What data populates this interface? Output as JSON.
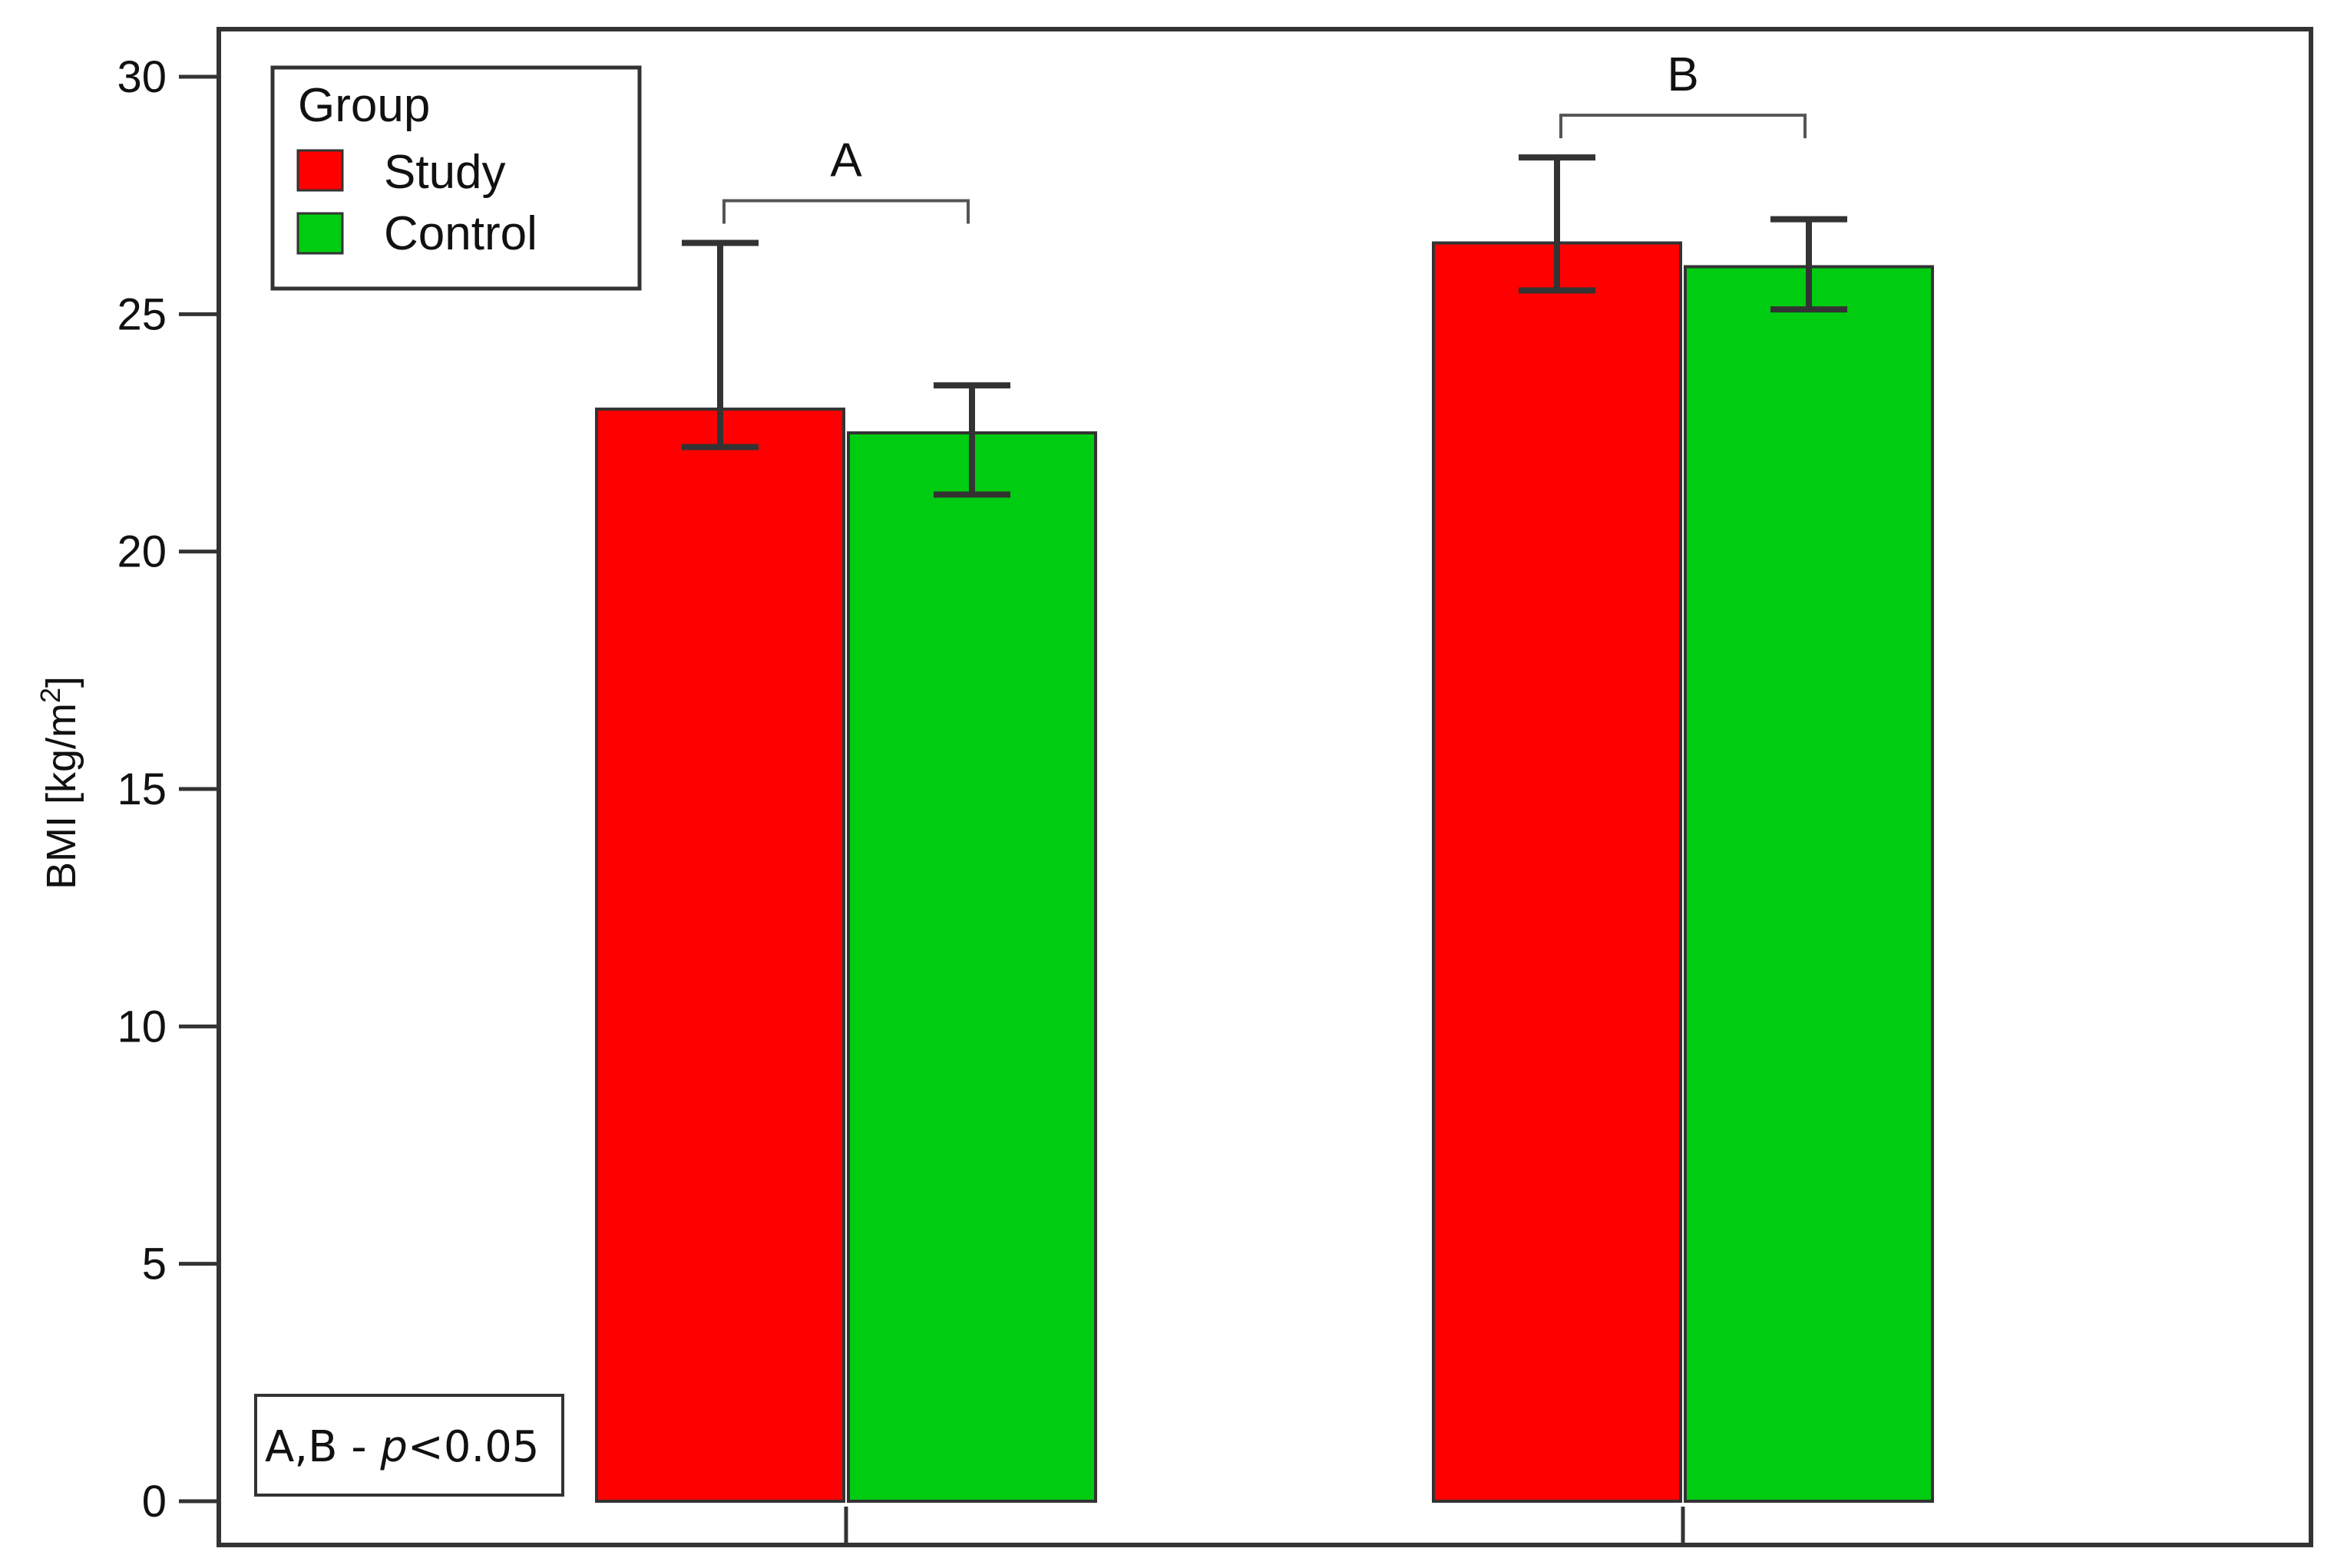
{
  "chart_data": {
    "type": "bar",
    "title": "",
    "xlabel": "",
    "ylabel": "BMI [kg/m",
    "ylabel_superscript": "2",
    "ylabel_close": "]",
    "ylim": [
      0,
      30
    ],
    "yticks": [
      0,
      5,
      10,
      15,
      20,
      25,
      30
    ],
    "categories": [
      "",
      ""
    ],
    "series": [
      {
        "name": "Study",
        "color": "#ff0000",
        "values": [
          23.0,
          26.5
        ],
        "err_low": [
          22.2,
          25.5
        ],
        "err_high": [
          26.5,
          28.3
        ]
      },
      {
        "name": "Control",
        "color": "#00cc11",
        "values": [
          22.5,
          26.0
        ],
        "err_low": [
          21.2,
          25.1
        ],
        "err_high": [
          23.5,
          27.0
        ]
      }
    ],
    "legend": {
      "title": "Group",
      "placement": "top-left"
    },
    "brackets": [
      {
        "label": "A",
        "group": 0
      },
      {
        "label": "B",
        "group": 1
      }
    ],
    "note": {
      "prefix": "A,B - ",
      "italic": "p",
      "suffix": "<0.05"
    }
  }
}
